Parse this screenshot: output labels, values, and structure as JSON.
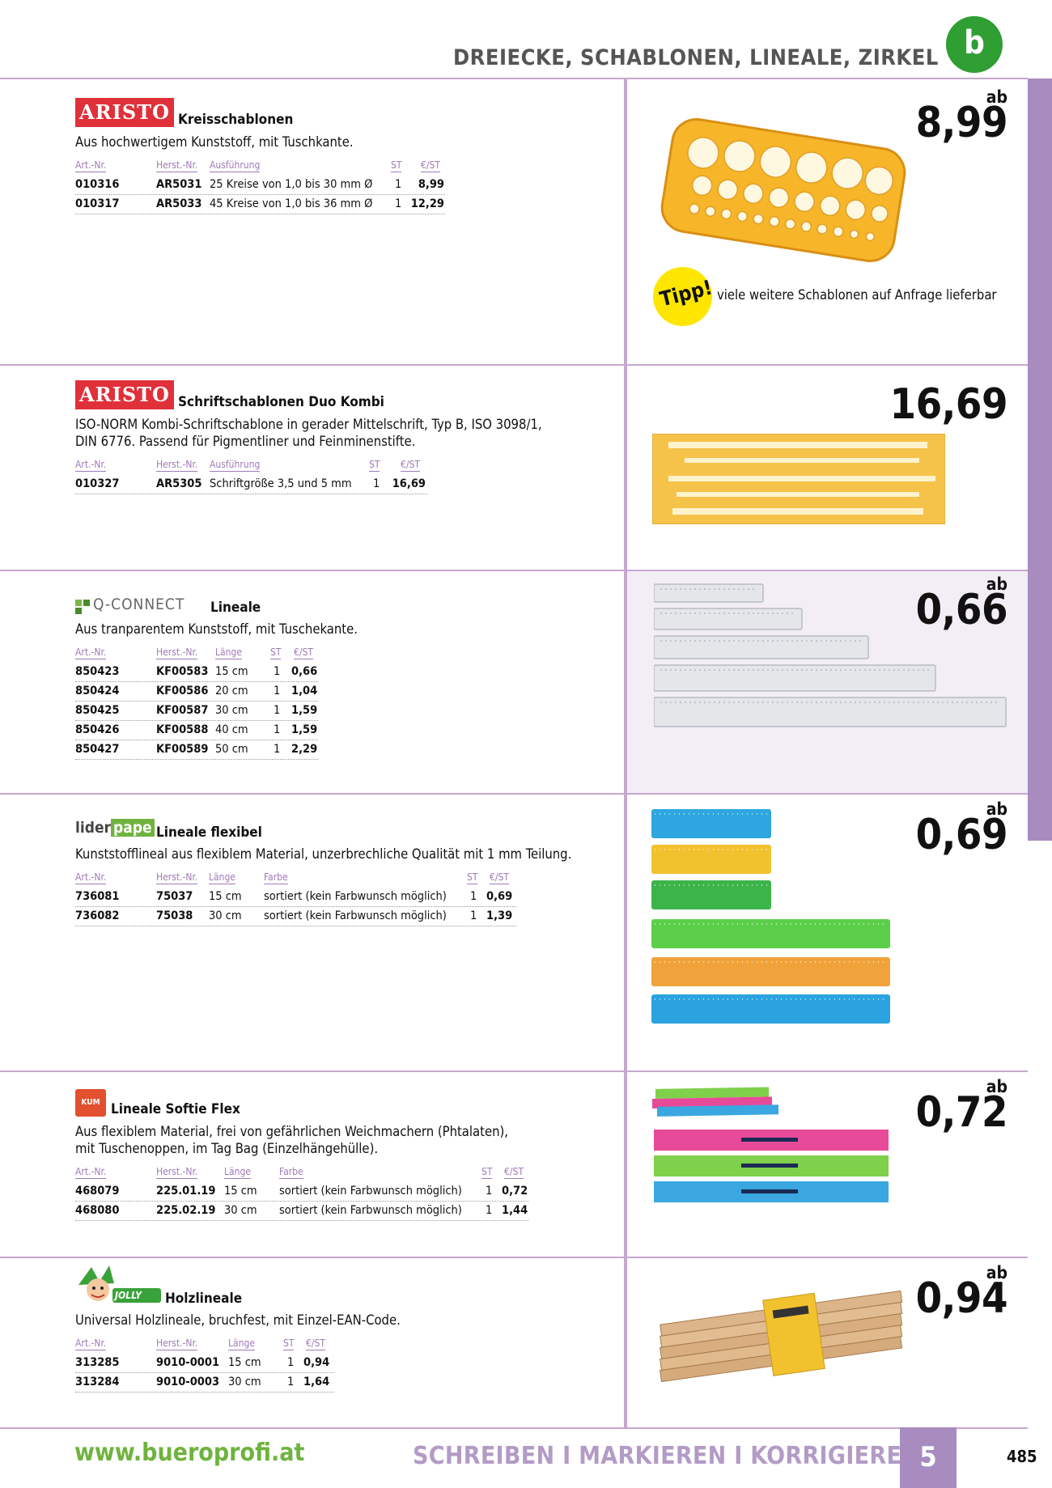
{
  "header": {
    "title": "DREIECKE, SCHABLONEN, LINEALE, ZIRKEL",
    "badge": "b"
  },
  "sections": {
    "s1": {
      "brand": "ARISTO",
      "title": "Kreisschablonen",
      "desc": [
        "Aus hochwertigem Kunststoff, mit Tuschkante."
      ],
      "headers": [
        "Art.-Nr.",
        "Herst.-Nr.",
        "Ausführung",
        "ST",
        "€/ST"
      ],
      "rows": [
        [
          "010316",
          "AR5031",
          "25 Kreise von 1,0 bis 30 mm Ø",
          "1",
          "8,99"
        ],
        [
          "010317",
          "AR5033",
          "45 Kreise von 1,0 bis 36 mm Ø",
          "1",
          "12,29"
        ]
      ],
      "price_prefix": "ab",
      "price": "8,99",
      "tipp_label": "Tipp!",
      "tipp_text": "viele weitere Schablonen auf Anfrage lieferbar"
    },
    "s2": {
      "brand": "ARISTO",
      "title": "Schriftschablonen Duo Kombi",
      "desc": [
        "ISO-NORM Kombi-Schriftschablone in gerader Mittelschrift, Typ B, ISO 3098/1,",
        "DIN 6776. Passend für Pigmentliner und Feinminenstifte."
      ],
      "headers": [
        "Art.-Nr.",
        "Herst.-Nr.",
        "Ausführung",
        "ST",
        "€/ST"
      ],
      "rows": [
        [
          "010327",
          "AR5305",
          "Schriftgröße 3,5 und 5 mm",
          "1",
          "16,69"
        ]
      ],
      "price": "16,69"
    },
    "s3": {
      "brand": "Q-CONNECT",
      "title": "Lineale",
      "desc": [
        "Aus tranparentem Kunststoff, mit Tuschekante."
      ],
      "headers": [
        "Art.-Nr.",
        "Herst.-Nr.",
        "Länge",
        "ST",
        "€/ST"
      ],
      "rows": [
        [
          "850423",
          "KF00583",
          "15 cm",
          "1",
          "0,66"
        ],
        [
          "850424",
          "KF00586",
          "20 cm",
          "1",
          "1,04"
        ],
        [
          "850425",
          "KF00587",
          "30 cm",
          "1",
          "1,59"
        ],
        [
          "850426",
          "KF00588",
          "40 cm",
          "1",
          "1,59"
        ],
        [
          "850427",
          "KF00589",
          "50 cm",
          "1",
          "2,29"
        ]
      ],
      "price_prefix": "ab",
      "price": "0,66"
    },
    "s4": {
      "brand_a": "lider",
      "brand_b": "pape",
      "title": "Lineale flexibel",
      "desc": [
        "Kunststofflineal aus flexiblem Material, unzerbrechliche Qualität mit 1 mm Teilung."
      ],
      "headers": [
        "Art.-Nr.",
        "Herst.-Nr.",
        "Länge",
        "Farbe",
        "ST",
        "€/ST"
      ],
      "rows": [
        [
          "736081",
          "75037",
          "15 cm",
          "sortiert (kein Farbwunsch möglich)",
          "1",
          "0,69"
        ],
        [
          "736082",
          "75038",
          "30 cm",
          "sortiert (kein Farbwunsch möglich)",
          "1",
          "1,39"
        ]
      ],
      "price_prefix": "ab",
      "price": "0,69"
    },
    "s5": {
      "brand": "KUM",
      "title": "Lineale Softie Flex",
      "desc": [
        "Aus flexiblem Material, frei von gefährlichen Weichmachern (Phtalaten),",
        "mit Tuschenoppen, im Tag Bag (Einzelhängehülle)."
      ],
      "headers": [
        "Art.-Nr.",
        "Herst.-Nr.",
        "Länge",
        "Farbe",
        "ST",
        "€/ST"
      ],
      "rows": [
        [
          "468079",
          "225.01.19",
          "15 cm",
          "sortiert (kein Farbwunsch möglich)",
          "1",
          "0,72"
        ],
        [
          "468080",
          "225.02.19",
          "30 cm",
          "sortiert (kein Farbwunsch möglich)",
          "1",
          "1,44"
        ]
      ],
      "price_prefix": "ab",
      "price": "0,72"
    },
    "s6": {
      "brand": "JOLLY",
      "title": "Holzlineale",
      "desc": [
        "Universal Holzlineale, bruchfest, mit Einzel-EAN-Code."
      ],
      "headers": [
        "Art.-Nr.",
        "Herst.-Nr.",
        "Länge",
        "ST",
        "€/ST"
      ],
      "rows": [
        [
          "313285",
          "9010-0001",
          "15 cm",
          "1",
          "0,94"
        ],
        [
          "313284",
          "9010-0003",
          "30 cm",
          "1",
          "1,64"
        ]
      ],
      "price_prefix": "ab",
      "price": "0,94"
    }
  },
  "footer": {
    "url": "www.bueroprofi.at",
    "category": "SCHREIBEN I MARKIEREN I KORRIGIEREN",
    "chapter": "5",
    "page": "485"
  },
  "colors": {
    "accent": "#c6a7cf",
    "sidebar": "#a88cc0",
    "brand_red": "#e0303a",
    "green": "#2f9e33"
  }
}
